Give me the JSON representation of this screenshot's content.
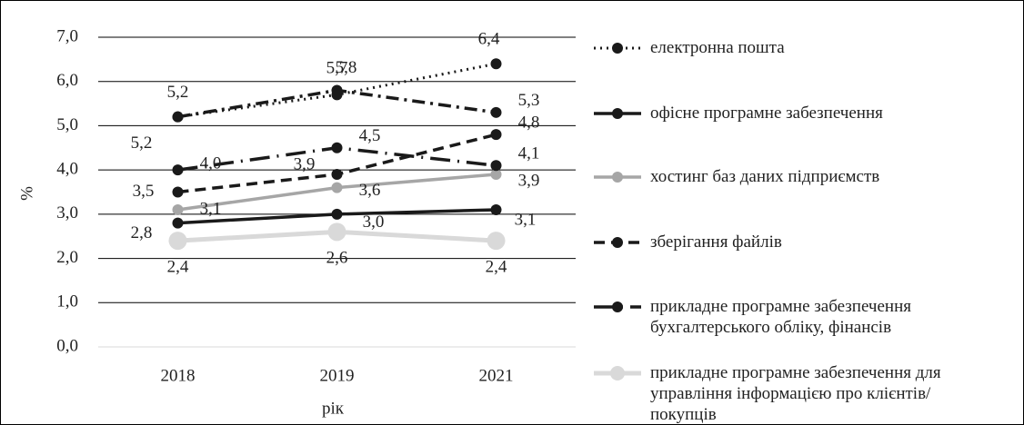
{
  "chart_data": {
    "type": "line",
    "xlabel": "рік",
    "ylabel": "%",
    "categories": [
      "2018",
      "2019",
      "2021"
    ],
    "ylim": [
      0,
      7
    ],
    "yticks": [
      {
        "value": 0,
        "label": "0,0"
      },
      {
        "value": 1,
        "label": "1,0"
      },
      {
        "value": 2,
        "label": "2,0"
      },
      {
        "value": 3,
        "label": "3,0"
      },
      {
        "value": 4,
        "label": "4,0"
      },
      {
        "value": 5,
        "label": "5,0"
      },
      {
        "value": 6,
        "label": "6,0"
      },
      {
        "value": 7,
        "label": "7,0"
      }
    ],
    "grid": true,
    "series": [
      {
        "name": "електронна пошта",
        "color": "#1a1a1a",
        "values": [
          5.2,
          5.7,
          6.4
        ],
        "value_labels": [
          "5,2",
          "5,7",
          "6,4"
        ]
      },
      {
        "name": "офісне програмне забезпечення",
        "color": "#1a1a1a",
        "values": [
          2.8,
          3.0,
          3.1
        ],
        "value_labels": [
          "2,8",
          "3,0",
          "3,1"
        ]
      },
      {
        "name": "хостинг баз даних підприємств",
        "color": "#a6a6a6",
        "values": [
          3.1,
          3.6,
          3.9
        ],
        "value_labels": [
          "3,1",
          "3,6",
          "3,9"
        ]
      },
      {
        "name": "зберігання файлів",
        "color": "#1a1a1a",
        "values": [
          3.5,
          3.9,
          4.8
        ],
        "value_labels": [
          "3,5",
          "3,9",
          "4,8"
        ]
      },
      {
        "name": "прикладне програмне забезпечення бухгалтерського обліку, фінансів",
        "color": "#1a1a1a",
        "values": [
          4.0,
          4.5,
          4.1
        ],
        "value_labels": [
          "4,0",
          "4,5",
          "4,1"
        ]
      },
      {
        "name": "прикладне програмне забезпечення для управління інформацією про клієнтів/покупців",
        "color": "#d9d9d9",
        "values": [
          2.4,
          2.6,
          2.4
        ],
        "value_labels": [
          "2,4",
          "2,6",
          "2,4"
        ]
      },
      {
        "color": "#1a1a1a",
        "values": [
          5.2,
          5.8,
          5.3
        ],
        "value_labels": [
          "5,2",
          "5,8",
          "5,3"
        ]
      }
    ]
  }
}
